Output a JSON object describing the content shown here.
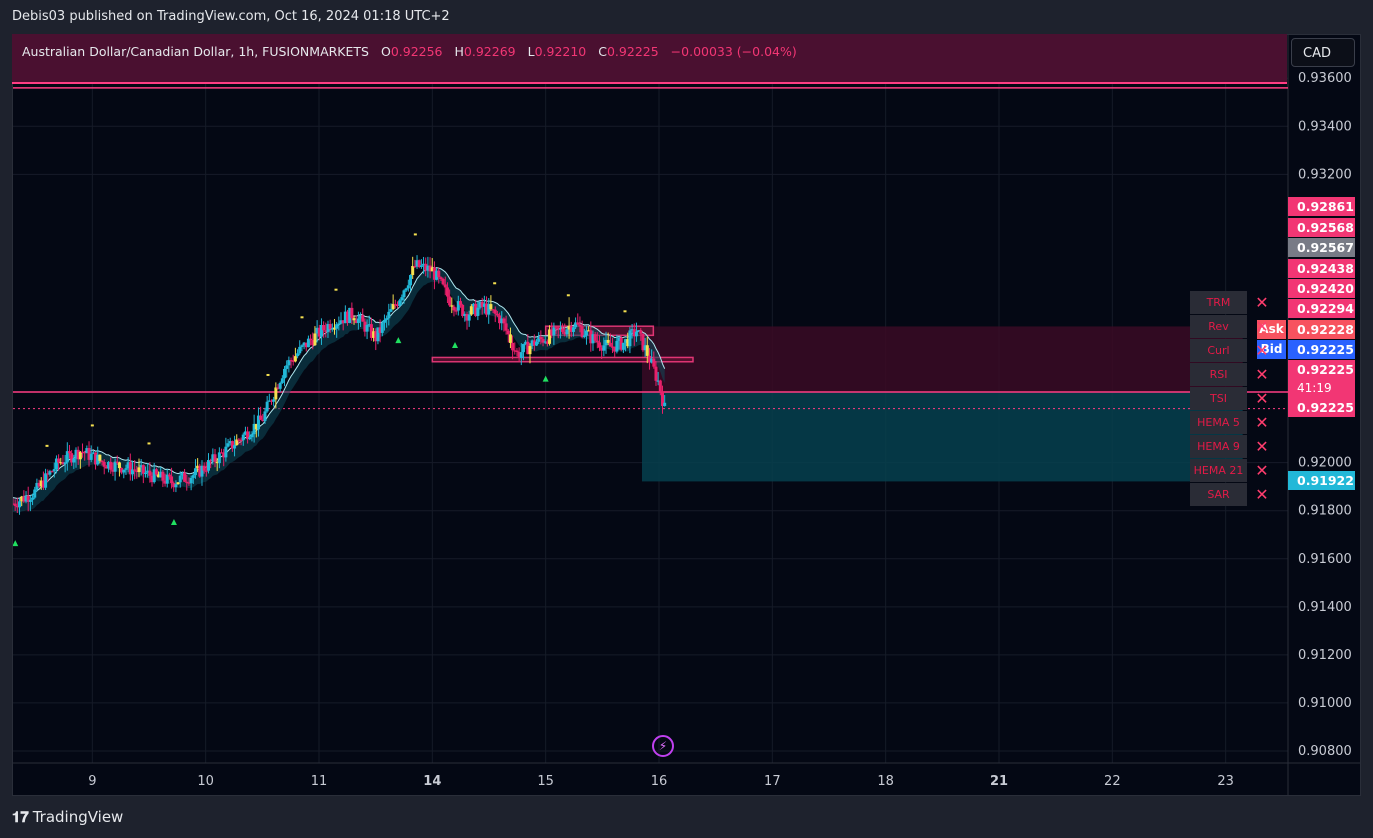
{
  "header": {
    "published_by": "Debis03 published on TradingView.com, Oct 16, 2024 01:18 UTC+2"
  },
  "legend": {
    "symbol": "Australian Dollar/Canadian Dollar, 1h, FUSIONMARKETS",
    "open_label": "O",
    "open": "0.92256",
    "high_label": "H",
    "high": "0.92269",
    "low_label": "L",
    "low": "0.92210",
    "close_label": "C",
    "close": "0.92225",
    "change": "−0.00033 (−0.04%)"
  },
  "currency_button": "CAD",
  "price_labels": [
    {
      "text": "0.92861",
      "price": 0.92861,
      "color": "#f23674"
    },
    {
      "text": "0.92568",
      "price": 0.92568,
      "color": "#f23674"
    },
    {
      "text": "0.92567",
      "price": 0.92567,
      "color": "#787b86"
    },
    {
      "text": "0.92438",
      "price": 0.92438,
      "color": "#f23674"
    },
    {
      "text": "0.92420",
      "price": 0.9242,
      "color": "#f23674"
    },
    {
      "text": "0.92294",
      "price": 0.92294,
      "color": "#f23674"
    },
    {
      "text": "0.92228",
      "price": 0.92228,
      "color": "#f7525f"
    },
    {
      "text": "0.92225",
      "price": 0.92225,
      "color": "#2962ff"
    },
    {
      "text": "0.92225",
      "price": 0.92225,
      "color": "#f23674"
    },
    {
      "text": "0.92225",
      "price": 0.92225,
      "color": "#f23674"
    },
    {
      "text": "0.91922",
      "price": 0.91922,
      "color": "#22b8d8"
    }
  ],
  "countdown": "41:19",
  "ask_label": "Ask",
  "bid_label": "Bid",
  "indicators": [
    {
      "name": "TRM",
      "remove": "✕"
    },
    {
      "name": "Rev",
      "remove": "✕"
    },
    {
      "name": "Curl",
      "remove": "✕"
    },
    {
      "name": "RSI",
      "remove": "✕"
    },
    {
      "name": "TSI",
      "remove": "✕"
    },
    {
      "name": "HEMA 5",
      "remove": "✕"
    },
    {
      "name": "HEMA 9",
      "remove": "✕"
    },
    {
      "name": "HEMA 21",
      "remove": "✕"
    },
    {
      "name": "SAR",
      "remove": "✕"
    }
  ],
  "colors": {
    "bull": "#22b8d8",
    "bear": "#e8206a",
    "neutral": "#f5e050",
    "accent": "#ff3d83",
    "grid": "#161b28"
  },
  "branding": "TradingView",
  "chart_data": {
    "type": "candlestick",
    "title": "",
    "x_ticks": [
      {
        "label": "9",
        "x": 9,
        "bold": false
      },
      {
        "label": "10",
        "x": 10,
        "bold": false
      },
      {
        "label": "11",
        "x": 11,
        "bold": false
      },
      {
        "label": "14",
        "x": 12,
        "bold": true
      },
      {
        "label": "15",
        "x": 13,
        "bold": false
      },
      {
        "label": "16",
        "x": 14,
        "bold": false
      },
      {
        "label": "17",
        "x": 15,
        "bold": false
      },
      {
        "label": "18",
        "x": 16,
        "bold": false
      },
      {
        "label": "21",
        "x": 17,
        "bold": true
      },
      {
        "label": "22",
        "x": 18,
        "bold": false
      },
      {
        "label": "23",
        "x": 19,
        "bold": false
      }
    ],
    "xlim": [
      8.3,
      19.55
    ],
    "ylim": [
      0.9075,
      0.9378
    ],
    "y_ticks": [
      "0.90800",
      "0.91000",
      "0.91200",
      "0.91400",
      "0.91600",
      "0.91800",
      "0.92000",
      "0.93200",
      "0.93400",
      "0.93600"
    ],
    "price_path": [
      [
        8.3,
        0.9183
      ],
      [
        8.5,
        0.9188
      ],
      [
        8.7,
        0.92
      ],
      [
        8.9,
        0.9205
      ],
      [
        9.1,
        0.92
      ],
      [
        9.3,
        0.9198
      ],
      [
        9.5,
        0.9195
      ],
      [
        9.7,
        0.9192
      ],
      [
        9.9,
        0.9195
      ],
      [
        10.1,
        0.9202
      ],
      [
        10.3,
        0.921
      ],
      [
        10.5,
        0.9218
      ],
      [
        10.7,
        0.924
      ],
      [
        10.9,
        0.925
      ],
      [
        11.1,
        0.9258
      ],
      [
        11.3,
        0.9262
      ],
      [
        11.5,
        0.9252
      ],
      [
        11.7,
        0.9268
      ],
      [
        11.85,
        0.9282
      ],
      [
        12.0,
        0.928
      ],
      [
        12.15,
        0.9268
      ],
      [
        12.3,
        0.9262
      ],
      [
        12.45,
        0.9265
      ],
      [
        12.6,
        0.926
      ],
      [
        12.75,
        0.9245
      ],
      [
        12.9,
        0.925
      ],
      [
        13.1,
        0.9254
      ],
      [
        13.25,
        0.9258
      ],
      [
        13.4,
        0.9252
      ],
      [
        13.55,
        0.9248
      ],
      [
        13.7,
        0.925
      ],
      [
        13.8,
        0.9255
      ],
      [
        13.9,
        0.9245
      ],
      [
        14.0,
        0.9233
      ],
      [
        14.05,
        0.92225
      ]
    ],
    "buy_arrows": [
      8.32,
      9.72,
      11.7,
      12.2,
      13.0
    ],
    "sell_dots": [
      8.6,
      9.0,
      9.5,
      10.55,
      10.85,
      11.15,
      11.85,
      12.55,
      13.2,
      13.7
    ],
    "hlines": [
      {
        "price": 0.9356,
        "color": "#ff3d83",
        "style": "solid"
      },
      {
        "price": 0.92294,
        "color": "#ff3d83",
        "style": "solid"
      },
      {
        "price": 0.92225,
        "color": "#ff3d83",
        "style": "dotted"
      }
    ],
    "zones": [
      {
        "x0": 13.85,
        "x1": 19.15,
        "y0": 0.92294,
        "y1": 0.92567,
        "fill": "#3a0a25"
      },
      {
        "x0": 13.85,
        "x1": 19.15,
        "y0": 0.91922,
        "y1": 0.92294,
        "fill": "#06404e"
      },
      {
        "x0": 12.0,
        "x1": 14.3,
        "y0": 0.92438,
        "y1": 0.9242,
        "fill": "#5a1030"
      },
      {
        "x0": 13.0,
        "x1": 13.95,
        "y0": 0.92568,
        "y1": 0.9253,
        "fill": "#5a1030"
      }
    ]
  }
}
